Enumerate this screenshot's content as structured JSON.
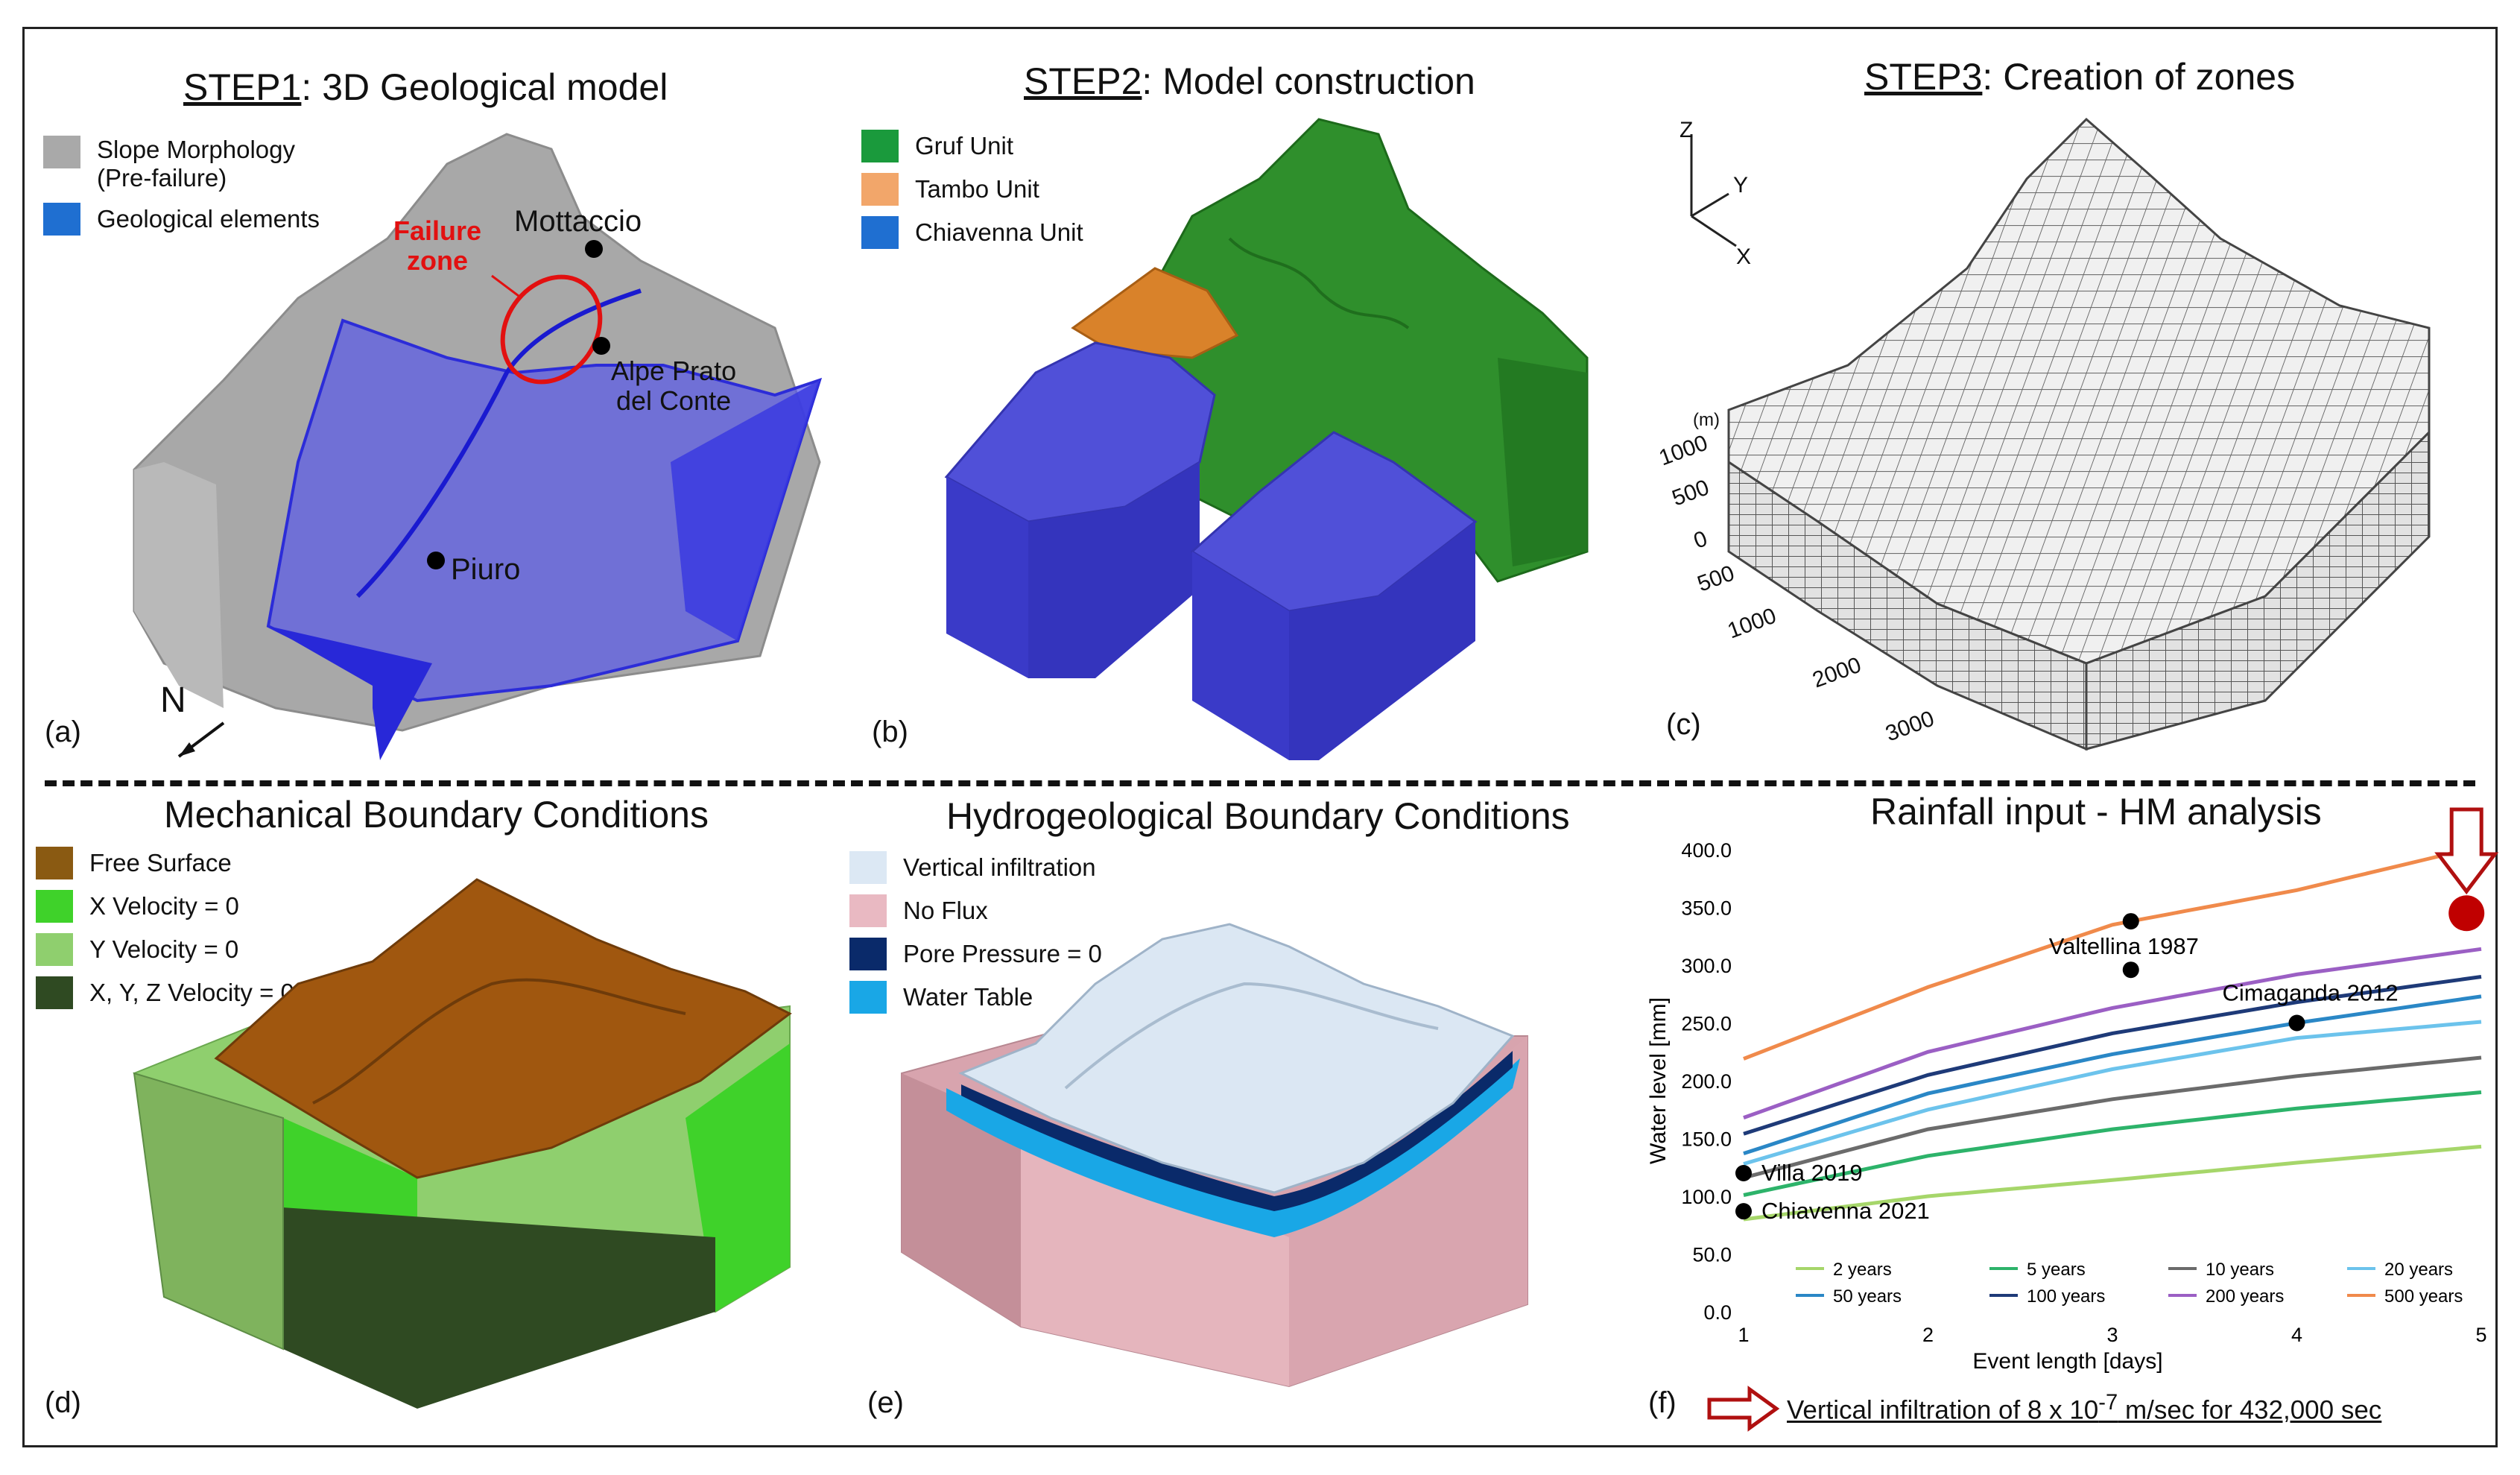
{
  "panel_a": {
    "title_step": "STEP1",
    "title_rest": ": 3D Geological model",
    "legend": [
      {
        "label_line1": "Slope Morphology",
        "label_line2": "(Pre-failure)",
        "color": "#a9a9a9"
      },
      {
        "label_line1": "Geological elements",
        "label_line2": "",
        "color": "#1f6fd1"
      }
    ],
    "failure_zone_line1": "Failure",
    "failure_zone_line2": "zone",
    "place_mottaccio": "Mottaccio",
    "place_alpe_line1": "Alpe Prato",
    "place_alpe_line2": "del Conte",
    "place_piuro": "Piuro",
    "north": "N",
    "label": "(a)"
  },
  "panel_b": {
    "title_step": "STEP2",
    "title_rest": ": Model construction",
    "legend": [
      {
        "label": "Gruf Unit",
        "color": "#1a9a3c"
      },
      {
        "label": "Tambo Unit",
        "color": "#f2a66a"
      },
      {
        "label": "Chiavenna Unit",
        "color": "#1f6fd1"
      }
    ],
    "label": "(b)"
  },
  "panel_c": {
    "title_step": "STEP3",
    "title_rest": ": Creation of zones",
    "axis_z": "Z",
    "axis_y": "Y",
    "axis_x": "X",
    "unit": "(m)",
    "vertical_ticks": [
      "1000",
      "500",
      "0"
    ],
    "horizontal_ticks": [
      "500",
      "1000",
      "2000",
      "3000"
    ],
    "label": "(c)"
  },
  "panel_d": {
    "title": "Mechanical Boundary Conditions",
    "legend": [
      {
        "label": "Free Surface",
        "color": "#8a5a12"
      },
      {
        "label": "X Velocity = 0",
        "color": "#3fd22a"
      },
      {
        "label": "Y Velocity = 0",
        "color": "#8fcf6e"
      },
      {
        "label": "X, Y, Z Velocity = 0",
        "color": "#2f4a22"
      }
    ],
    "label": "(d)"
  },
  "panel_e": {
    "title": "Hydrogeological Boundary Conditions",
    "legend": [
      {
        "label": "Vertical infiltration",
        "color": "#dce8f4"
      },
      {
        "label": "No Flux",
        "color": "#e9b9c2"
      },
      {
        "label": "Pore Pressure = 0",
        "color": "#0a2a6a"
      },
      {
        "label": "Water Table",
        "color": "#19a7e6"
      }
    ],
    "label": "(e)"
  },
  "panel_f": {
    "title": "Rainfall input - HM analysis",
    "label": "(f)",
    "footnote_main": "Vertical infiltration of 8 x 10",
    "footnote_exp": "-7",
    "footnote_end": " m/sec for 432,000 sec"
  },
  "chart_data": {
    "type": "line",
    "title": "Rainfall input - HM analysis",
    "xlabel": "Event length [days]",
    "ylabel": "Water level [mm]",
    "xlim": [
      1,
      5
    ],
    "ylim": [
      0,
      400
    ],
    "x": [
      1,
      2,
      3,
      4,
      5
    ],
    "xticks": [
      "1",
      "2",
      "3",
      "4",
      "5"
    ],
    "yticks": [
      "0.0",
      "50.0",
      "100.0",
      "150.0",
      "200.0",
      "250.0",
      "300.0",
      "350.0",
      "400.0"
    ],
    "series": [
      {
        "name": "2 years",
        "color": "#a6d66a",
        "values": [
          80,
          100,
          114,
          129,
          143
        ]
      },
      {
        "name": "5 years",
        "color": "#2db36a",
        "values": [
          101,
          135,
          158,
          176,
          190
        ]
      },
      {
        "name": "10 years",
        "color": "#6b6b6b",
        "values": [
          116,
          158,
          184,
          204,
          220
        ]
      },
      {
        "name": "20 years",
        "color": "#6cc3ec",
        "values": [
          128,
          175,
          210,
          237,
          251
        ]
      },
      {
        "name": "50 years",
        "color": "#2a87c6",
        "values": [
          137,
          189,
          223,
          250,
          273
        ]
      },
      {
        "name": "100 years",
        "color": "#1e3a78",
        "values": [
          154,
          205,
          241,
          268,
          290
        ]
      },
      {
        "name": "200 years",
        "color": "#9b5fc4",
        "values": [
          168,
          225,
          263,
          292,
          314
        ]
      },
      {
        "name": "500 years",
        "color": "#f08a4b",
        "values": [
          219,
          281,
          335,
          365,
          403
        ]
      }
    ],
    "events": [
      {
        "label": "Valtellina 1987",
        "x": 3.1,
        "y": 338
      },
      {
        "label": "",
        "x": 3.1,
        "y": 296
      },
      {
        "label": "Cimaganda 2012",
        "x": 4.0,
        "y": 250
      },
      {
        "label": "Villa 2019",
        "x": 1.0,
        "y": 120
      },
      {
        "label": "Chiavenna 2021",
        "x": 1.0,
        "y": 87
      }
    ],
    "highlight": {
      "x": 4.92,
      "y": 345,
      "color": "#c00000"
    }
  }
}
